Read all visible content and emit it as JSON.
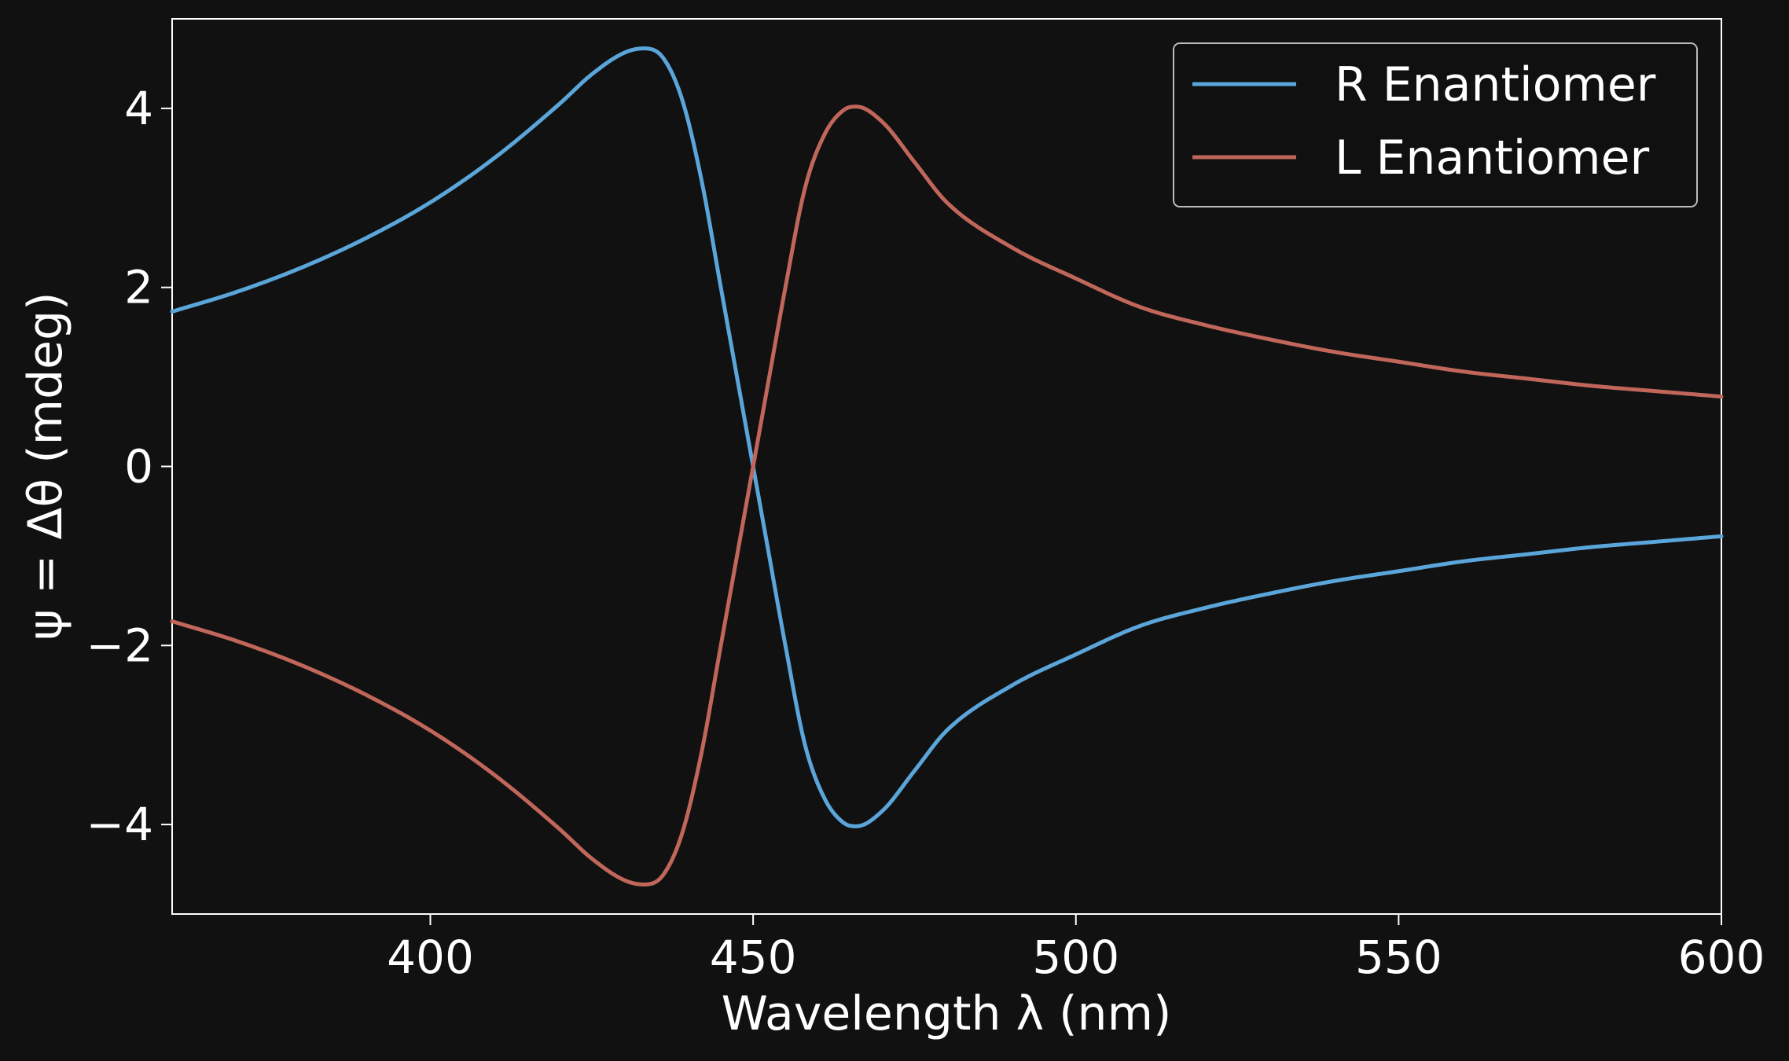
{
  "chart_data": {
    "type": "line",
    "xlabel": "Wavelength λ (nm)",
    "ylabel": "ψ = Δθ (mdeg)",
    "xlim": [
      360,
      600
    ],
    "ylim": [
      -5,
      5
    ],
    "xticks": [
      400,
      450,
      500,
      550,
      600
    ],
    "xtick_labels": [
      "400",
      "450",
      "500",
      "550",
      "600"
    ],
    "yticks": [
      -4,
      -2,
      0,
      2,
      4
    ],
    "ytick_labels": [
      "−4",
      "−2",
      "0",
      "2",
      "4"
    ],
    "grid": false,
    "legend_position": "top-right",
    "background_color": "#111111",
    "axes_color": "#ffffff",
    "series": [
      {
        "name": "R Enantiomer",
        "color": "#5aa5d9",
        "x": [
          360,
          370,
          380,
          390,
          400,
          410,
          420,
          425,
          430,
          433,
          436,
          439,
          442,
          445,
          448,
          450,
          452,
          455,
          458,
          461,
          464,
          466,
          470,
          475,
          480,
          490,
          500,
          510,
          520,
          530,
          540,
          550,
          560,
          570,
          580,
          590,
          600
        ],
        "y": [
          1.73,
          1.95,
          2.22,
          2.55,
          2.95,
          3.45,
          4.05,
          4.38,
          4.62,
          4.67,
          4.57,
          4.1,
          3.2,
          2.0,
          0.8,
          0.0,
          -0.8,
          -2.0,
          -3.1,
          -3.7,
          -3.98,
          -4.02,
          -3.85,
          -3.4,
          -2.95,
          -2.45,
          -2.1,
          -1.78,
          -1.58,
          -1.42,
          -1.28,
          -1.17,
          -1.06,
          -0.98,
          -0.9,
          -0.84,
          -0.78
        ]
      },
      {
        "name": "L Enantiomer",
        "color": "#c0665a",
        "x": [
          360,
          370,
          380,
          390,
          400,
          410,
          420,
          425,
          430,
          433,
          436,
          439,
          442,
          445,
          448,
          450,
          452,
          455,
          458,
          461,
          464,
          466,
          470,
          475,
          480,
          490,
          500,
          510,
          520,
          530,
          540,
          550,
          560,
          570,
          580,
          590,
          600
        ],
        "y": [
          -1.73,
          -1.95,
          -2.22,
          -2.55,
          -2.95,
          -3.45,
          -4.05,
          -4.38,
          -4.62,
          -4.67,
          -4.57,
          -4.1,
          -3.2,
          -2.0,
          -0.8,
          0.0,
          0.8,
          2.0,
          3.1,
          3.7,
          3.98,
          4.02,
          3.85,
          3.4,
          2.95,
          2.45,
          2.1,
          1.78,
          1.58,
          1.42,
          1.28,
          1.17,
          1.06,
          0.98,
          0.9,
          0.84,
          0.78
        ]
      }
    ]
  }
}
